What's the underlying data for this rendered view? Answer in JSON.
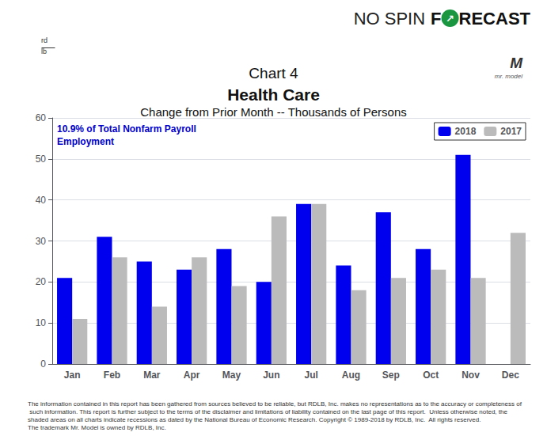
{
  "chart_data": {
    "type": "bar",
    "title": "Health Care",
    "subtitle": "Change from Prior Month -- Thousands of Persons",
    "categories": [
      "Jan",
      "Feb",
      "Mar",
      "Apr",
      "May",
      "Jun",
      "Jul",
      "Aug",
      "Sep",
      "Oct",
      "Nov",
      "Dec"
    ],
    "series": [
      {
        "name": "2018",
        "color": "#0000EE",
        "values": [
          21,
          31,
          25,
          23,
          28,
          20,
          39,
          24,
          37,
          28,
          51,
          0
        ]
      },
      {
        "name": "2017",
        "color": "#BBBBBB",
        "values": [
          11,
          26,
          14,
          26,
          19,
          36,
          39,
          18,
          21,
          23,
          21,
          32
        ]
      }
    ],
    "ylim": [
      0,
      60
    ],
    "yticks": [
      0,
      10,
      20,
      30,
      40,
      50,
      60
    ],
    "grid": true,
    "legend": "upper right",
    "annotations": [
      {
        "text": "Chart 4"
      },
      {
        "text": "10.9% of Total Nonfarm Payroll\nEmployment",
        "color": "#0000CC"
      },
      {
        "text": "NO SPIN"
      },
      {
        "text": "F"
      },
      {
        "text": "↗"
      },
      {
        "text": "RECAST"
      },
      {
        "text": "rd"
      },
      {
        "text": "lb"
      },
      {
        "text": "M"
      },
      {
        "text": "mr. model"
      },
      {
        "text": "The information contained in this report has been gathered from sources believed to be reliable, but RDLB, Inc. makes no representations as to the accuracy or completeness of such information. This report is further subject to the terms of the disclaimer and limitations of liability contained on the last page of this report.  Unless otherwise noted, the shaded areas on all charts indicate recessions as dated by the National Bureau of Economic Research. Copyright © 1989-2018 by RDLB, Inc.  All rights reserved.\nThe trademark Mr. Model is owned by RDLB, Inc."
      }
    ]
  }
}
